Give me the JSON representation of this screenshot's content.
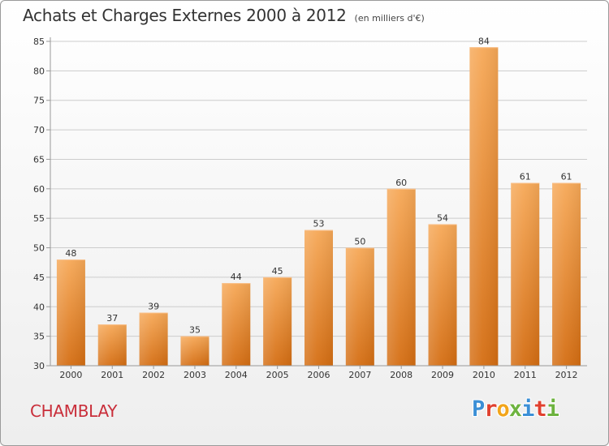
{
  "header": {
    "title": "Achats et Charges Externes 2000 à 2012",
    "subtitle": "(en milliers d'€)"
  },
  "footer": {
    "commune": "CHAMBLAY",
    "logo_text": "Proxiti",
    "logo_letters": [
      {
        "char": "P",
        "color": "#3b8fd6"
      },
      {
        "char": "r",
        "color": "#e0402f"
      },
      {
        "char": "o",
        "color": "#f2a51a"
      },
      {
        "char": "x",
        "color": "#6db33f"
      },
      {
        "char": "i",
        "color": "#3b8fd6"
      },
      {
        "char": "t",
        "color": "#e0402f"
      },
      {
        "char": "i",
        "color": "#6db33f"
      }
    ]
  },
  "colors": {
    "bar_top": "#f6a857",
    "bar_bottom": "#d46d12",
    "grid": "#cccccc",
    "axis": "#999999",
    "text": "#333333",
    "commune": "#c92e3a"
  },
  "chart_data": {
    "type": "bar",
    "title": "Achats et Charges Externes 2000 à 2012",
    "subtitle": "(en milliers d'€)",
    "categories": [
      "2000",
      "2001",
      "2002",
      "2003",
      "2004",
      "2005",
      "2006",
      "2007",
      "2008",
      "2009",
      "2010",
      "2011",
      "2012"
    ],
    "values": [
      48,
      37,
      39,
      35,
      44,
      45,
      53,
      50,
      60,
      54,
      84,
      61,
      61
    ],
    "ylim": [
      30,
      85
    ],
    "yticks": [
      30,
      35,
      40,
      45,
      50,
      55,
      60,
      65,
      70,
      75,
      80,
      85
    ],
    "grid": true,
    "data_labels": true,
    "xlabel": "",
    "ylabel": ""
  }
}
